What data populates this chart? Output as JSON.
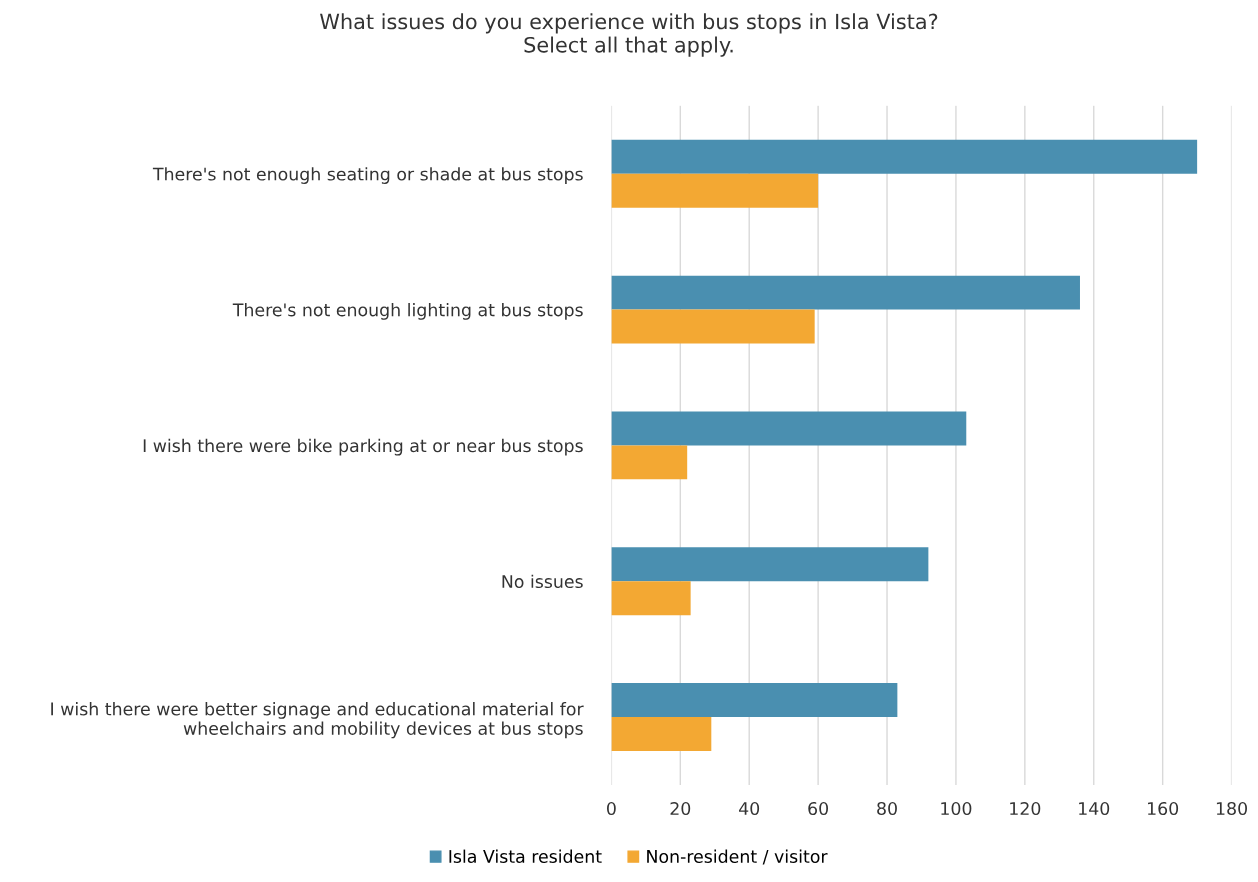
{
  "chart_data": {
    "type": "bar",
    "orientation": "horizontal",
    "title": "What issues do you experience with bus stops in Isla Vista?\nSelect all that apply.",
    "categories": [
      "There's not enough seating or shade at bus stops",
      "There's not enough lighting at bus stops",
      "I wish there were bike parking at or near bus stops",
      "No issues",
      "I wish there were better signage and educational material for\nwheelchairs and mobility devices at bus stops"
    ],
    "series": [
      {
        "name": "Isla Vista resident",
        "color": "#4a8fb0",
        "values": [
          170,
          136,
          103,
          92,
          83
        ]
      },
      {
        "name": "Non-resident / visitor",
        "color": "#f3a833",
        "values": [
          60,
          59,
          22,
          23,
          29
        ]
      }
    ],
    "xlim": [
      0,
      180
    ],
    "xticks": [
      0,
      20,
      40,
      60,
      80,
      100,
      120,
      140,
      160,
      180
    ],
    "grid": "x",
    "legend": "bottom"
  }
}
